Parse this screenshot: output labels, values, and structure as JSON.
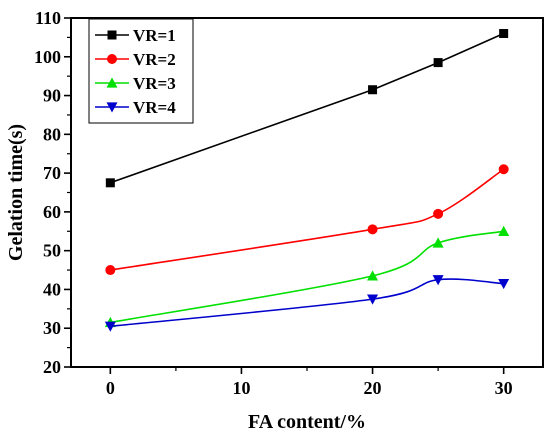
{
  "chart_data": {
    "type": "line",
    "xlabel": "FA content/%",
    "ylabel": "Gelation time(s)",
    "xlim": [
      -3,
      33
    ],
    "ylim": [
      20,
      110
    ],
    "x_ticks": [
      0,
      10,
      20,
      30
    ],
    "y_ticks": [
      20,
      30,
      40,
      50,
      60,
      70,
      80,
      90,
      100,
      110
    ],
    "x_tick_labels": [
      "0",
      "10",
      "20",
      "30"
    ],
    "y_tick_labels": [
      "20",
      "30",
      "40",
      "50",
      "60",
      "70",
      "80",
      "90",
      "100",
      "110"
    ],
    "x_minor_step": 5,
    "y_minor_step": 5,
    "grid": false,
    "legend_position": "top-left",
    "x": [
      0,
      20,
      25,
      30
    ],
    "series": [
      {
        "name": "VR=1",
        "values": [
          67.5,
          91.5,
          98.5,
          106
        ],
        "color": "#000000",
        "marker": "square"
      },
      {
        "name": "VR=2",
        "values": [
          45,
          55.5,
          59.5,
          71
        ],
        "color": "#ff0000",
        "marker": "circle"
      },
      {
        "name": "VR=3",
        "values": [
          31.5,
          43.5,
          52,
          55
        ],
        "color": "#00e000",
        "marker": "triangle-up"
      },
      {
        "name": "VR=4",
        "values": [
          30.5,
          37.5,
          42.5,
          41.5
        ],
        "color": "#0000cc",
        "marker": "triangle-down"
      }
    ]
  }
}
